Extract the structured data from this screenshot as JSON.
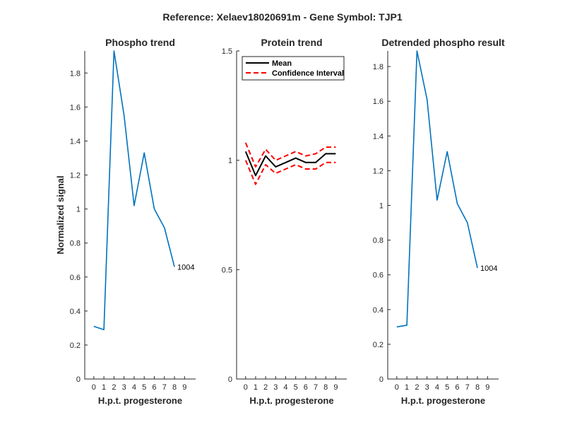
{
  "chart_data": [
    {
      "type": "line",
      "title": "Phospho trend",
      "suptitle": "Reference:  Xelaev18020691m - Gene Symbol:  TJP1",
      "xlabel": "H.p.t. progesterone",
      "ylabel": "Normalized signal",
      "xticks": [
        0,
        1,
        2,
        3,
        4,
        5,
        6,
        7,
        8,
        9
      ],
      "xlim": [
        -0.9,
        10.1
      ],
      "ylim": [
        0,
        1.93
      ],
      "yticks": [
        0,
        0.2,
        0.4,
        0.6,
        0.8,
        1,
        1.2,
        1.4,
        1.6,
        1.8
      ],
      "ytick_labels": [
        "0",
        "0.2",
        "0.4",
        "0.6",
        "0.8",
        "1",
        "1.2",
        "1.4",
        "1.6",
        "1.8"
      ],
      "series": [
        {
          "color": "#0072BD",
          "x": [
            0,
            1,
            2,
            3,
            4,
            5,
            6,
            7,
            8
          ],
          "y": [
            0.31,
            0.29,
            1.93,
            1.55,
            1.02,
            1.33,
            1.0,
            0.89,
            0.66
          ]
        }
      ],
      "annotations": [
        {
          "text": "1004",
          "x": 8,
          "y": 0.66
        }
      ]
    },
    {
      "type": "line",
      "title": "Protein trend",
      "xlabel": "H.p.t. progesterone",
      "ylabel": "",
      "xticks": [
        0,
        1,
        2,
        3,
        4,
        5,
        6,
        7,
        8,
        9
      ],
      "xlim": [
        -0.9,
        10.1
      ],
      "ylim": [
        0,
        1.5
      ],
      "yticks": [
        0,
        0.5,
        1,
        1.5
      ],
      "ytick_labels": [
        "0",
        "0.5",
        "1",
        "1.5"
      ],
      "series": [
        {
          "name": "Mean",
          "color": "#000000",
          "style": "solid",
          "x": [
            0,
            1,
            2,
            3,
            4,
            5,
            6,
            7,
            8,
            9
          ],
          "y": [
            1.04,
            0.93,
            1.02,
            0.97,
            0.99,
            1.01,
            0.99,
            0.99,
            1.03,
            1.03
          ]
        },
        {
          "name": "Confidence Interval",
          "color": "#FF0000",
          "style": "dashed",
          "x": [
            0,
            1,
            2,
            3,
            4,
            5,
            6,
            7,
            8,
            9
          ],
          "y": [
            1.08,
            0.97,
            1.05,
            1.0,
            1.02,
            1.04,
            1.02,
            1.03,
            1.06,
            1.06
          ]
        },
        {
          "name": "",
          "color": "#FF0000",
          "style": "dashed",
          "x": [
            0,
            1,
            2,
            3,
            4,
            5,
            6,
            7,
            8,
            9
          ],
          "y": [
            1.0,
            0.89,
            0.98,
            0.94,
            0.96,
            0.98,
            0.96,
            0.96,
            0.99,
            0.99
          ]
        }
      ],
      "legend": {
        "placement": "top-left",
        "entries": [
          "Mean",
          "Confidence Interval"
        ]
      }
    },
    {
      "type": "line",
      "title": "Detrended phospho result",
      "xlabel": "H.p.t. progesterone",
      "ylabel": "",
      "xticks": [
        0,
        1,
        2,
        3,
        4,
        5,
        6,
        7,
        8,
        9
      ],
      "xlim": [
        -0.9,
        10.1
      ],
      "ylim": [
        0,
        1.89
      ],
      "yticks": [
        0,
        0.2,
        0.4,
        0.6,
        0.8,
        1,
        1.2,
        1.4,
        1.6,
        1.8
      ],
      "ytick_labels": [
        "0",
        "0.2",
        "0.4",
        "0.6",
        "0.8",
        "1",
        "1.2",
        "1.4",
        "1.6",
        "1.8"
      ],
      "series": [
        {
          "color": "#0072BD",
          "x": [
            0,
            1,
            2,
            3,
            4,
            5,
            6,
            7,
            8
          ],
          "y": [
            0.3,
            0.31,
            1.89,
            1.61,
            1.03,
            1.31,
            1.01,
            0.9,
            0.64
          ]
        }
      ],
      "annotations": [
        {
          "text": "1004",
          "x": 8,
          "y": 0.64
        }
      ]
    }
  ]
}
